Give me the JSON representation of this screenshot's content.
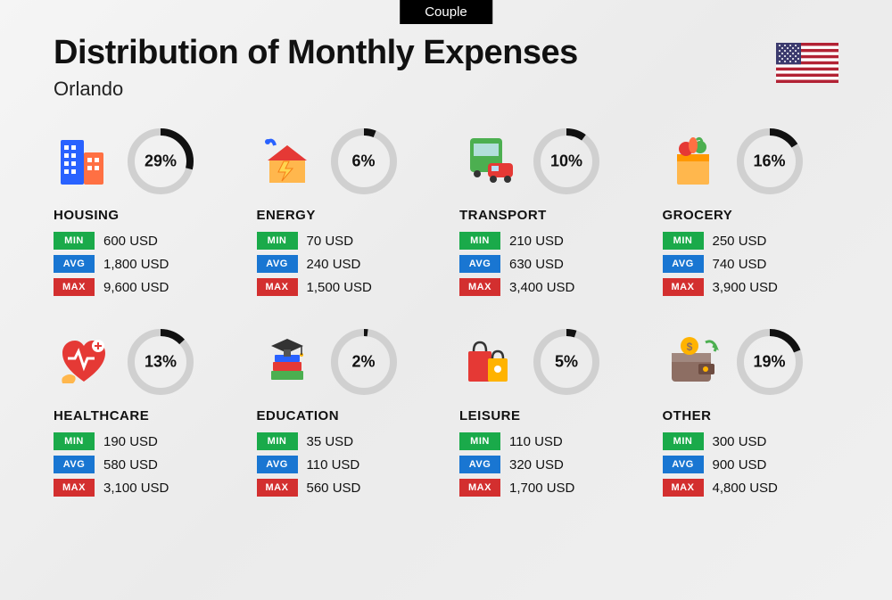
{
  "badge": "Couple",
  "title": "Distribution of Monthly Expenses",
  "subtitle": "Orlando",
  "labels": {
    "min": "MIN",
    "avg": "AVG",
    "max": "MAX"
  },
  "colors": {
    "min_badge": "#1aaa4a",
    "avg_badge": "#1976d2",
    "max_badge": "#d32f2f",
    "donut_fill": "#111111",
    "donut_track": "#d0d0d0",
    "text": "#111111",
    "background_gradient": [
      "#f5f5f5",
      "#ebebeb",
      "#f0f0f0"
    ]
  },
  "donut": {
    "radius": 33,
    "stroke_width": 8
  },
  "categories": [
    {
      "key": "housing",
      "name": "HOUSING",
      "percent": 29,
      "percent_label": "29%",
      "min": "600 USD",
      "avg": "1,800 USD",
      "max": "9,600 USD",
      "icon": "buildings-icon"
    },
    {
      "key": "energy",
      "name": "ENERGY",
      "percent": 6,
      "percent_label": "6%",
      "min": "70 USD",
      "avg": "240 USD",
      "max": "1,500 USD",
      "icon": "energy-house-icon"
    },
    {
      "key": "transport",
      "name": "TRANSPORT",
      "percent": 10,
      "percent_label": "10%",
      "min": "210 USD",
      "avg": "630 USD",
      "max": "3,400 USD",
      "icon": "bus-car-icon"
    },
    {
      "key": "grocery",
      "name": "GROCERY",
      "percent": 16,
      "percent_label": "16%",
      "min": "250 USD",
      "avg": "740 USD",
      "max": "3,900 USD",
      "icon": "grocery-bag-icon"
    },
    {
      "key": "healthcare",
      "name": "HEALTHCARE",
      "percent": 13,
      "percent_label": "13%",
      "min": "190 USD",
      "avg": "580 USD",
      "max": "3,100 USD",
      "icon": "healthcare-icon"
    },
    {
      "key": "education",
      "name": "EDUCATION",
      "percent": 2,
      "percent_label": "2%",
      "min": "35 USD",
      "avg": "110 USD",
      "max": "560 USD",
      "icon": "graduation-books-icon"
    },
    {
      "key": "leisure",
      "name": "LEISURE",
      "percent": 5,
      "percent_label": "5%",
      "min": "110 USD",
      "avg": "320 USD",
      "max": "1,700 USD",
      "icon": "shopping-bags-icon"
    },
    {
      "key": "other",
      "name": "OTHER",
      "percent": 19,
      "percent_label": "19%",
      "min": "300 USD",
      "avg": "900 USD",
      "max": "4,800 USD",
      "icon": "wallet-icon"
    }
  ]
}
